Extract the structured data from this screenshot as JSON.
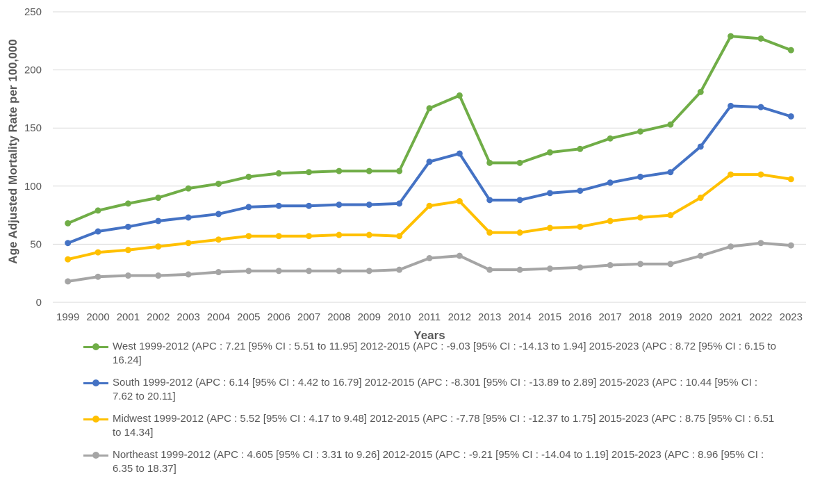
{
  "chart_data": {
    "type": "line",
    "xlabel": "Years",
    "ylabel": "Age Adjusted Mortality Rate per 100,000",
    "ylim": [
      0,
      250
    ],
    "yticks": [
      0,
      50,
      100,
      150,
      200,
      250
    ],
    "grid": "horizontal",
    "legend_position": "bottom",
    "categories": [
      "1999",
      "2000",
      "2001",
      "2002",
      "2003",
      "2004",
      "2005",
      "2006",
      "2007",
      "2008",
      "2009",
      "2010",
      "2011",
      "2012",
      "2013",
      "2014",
      "2015",
      "2016",
      "2017",
      "2018",
      "2019",
      "2020",
      "2021",
      "2022",
      "2023"
    ],
    "series": [
      {
        "name": "West 1999-2012 (APC : 7.21 [95% CI : 5.51 to 11.95]  2012-2015 (APC : -9.03 [95% CI : -14.13 to 1.94]  2015-2023 (APC : 8.72 [95% CI : 6.15 to 16.24]",
        "color": "#70AD47",
        "values": [
          68,
          79,
          85,
          90,
          98,
          102,
          108,
          111,
          112,
          113,
          113,
          113,
          167,
          178,
          120,
          120,
          129,
          132,
          141,
          147,
          153,
          181,
          229,
          227,
          217
        ]
      },
      {
        "name": "South 1999-2012 (APC : 6.14 [95% CI : 4.42 to 16.79]  2012-2015 (APC : -8.301 [95% CI : -13.89 to 2.89]  2015-2023 (APC : 10.44 [95% CI : 7.62 to 20.11]",
        "color": "#4472C4",
        "values": [
          51,
          61,
          65,
          70,
          73,
          76,
          82,
          83,
          83,
          84,
          84,
          85,
          121,
          128,
          88,
          88,
          94,
          96,
          103,
          108,
          112,
          134,
          169,
          168,
          160
        ]
      },
      {
        "name": "Midwest 1999-2012 (APC : 5.52 [95% CI : 4.17 to 9.48]  2012-2015 (APC : -7.78 [95% CI : -12.37 to 1.75]  2015-2023 (APC : 8.75 [95% CI : 6.51 to 14.34]",
        "color": "#FFC000",
        "values": [
          37,
          43,
          45,
          48,
          51,
          54,
          57,
          57,
          57,
          58,
          58,
          57,
          83,
          87,
          60,
          60,
          64,
          65,
          70,
          73,
          75,
          90,
          110,
          110,
          106
        ]
      },
      {
        "name": "Northeast 1999-2012 (APC : 4.605 [95% CI : 3.31 to 9.26]  2012-2015 (APC : -9.21 [95% CI : -14.04 to 1.19]  2015-2023 (APC : 8.96 [95% CI : 6.35 to 18.37]",
        "color": "#A5A5A5",
        "values": [
          18,
          22,
          23,
          23,
          24,
          26,
          27,
          27,
          27,
          27,
          27,
          28,
          38,
          40,
          28,
          28,
          29,
          30,
          32,
          33,
          33,
          40,
          48,
          51,
          49
        ]
      }
    ]
  }
}
